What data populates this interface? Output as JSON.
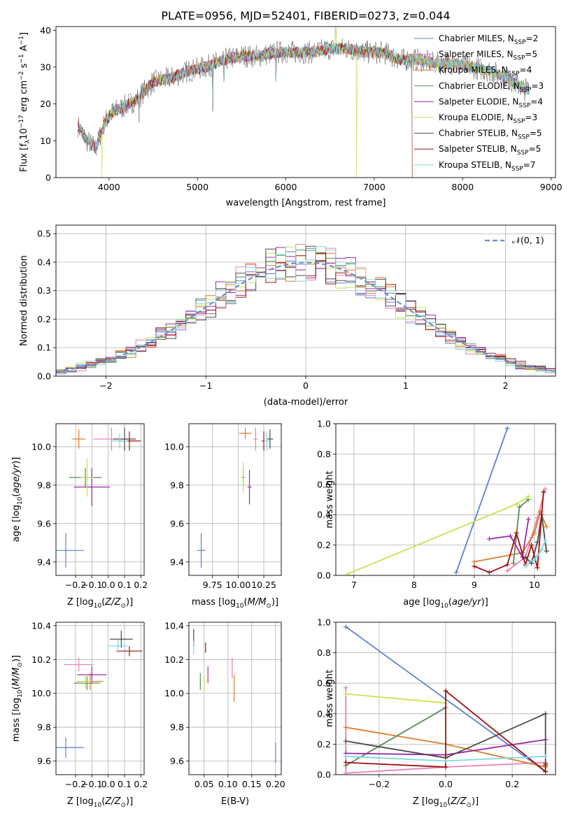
{
  "figure_title": "PLATE=0956, MJD=52401, FIBERID=0273, z=0.044",
  "colors": {
    "chabrier_miles": "#5b7fd6",
    "salpeter_miles": "#e87fb8",
    "kroupa_miles": "#e07b2a",
    "chabrier_elodie": "#5a8a5a",
    "salpeter_elodie": "#9a2aa8",
    "kroupa_elodie": "#c8e050",
    "chabrier_stelib": "#4a4a4a",
    "salpeter_stelib": "#a01010",
    "kroupa_stelib": "#80d8e0"
  },
  "chart_data": [
    {
      "id": "spectrum",
      "type": "line",
      "xlabel": "wavelength [Angstrom, rest frame]",
      "ylabel": "Flux [f",
      "xlim": [
        3400,
        9050
      ],
      "ylim": [
        0,
        41
      ],
      "xticks": [
        4000,
        5000,
        6000,
        7000,
        8000,
        9000
      ],
      "yticks": [
        0,
        10,
        20,
        30,
        40
      ],
      "legend_position": "top-right",
      "legend": [
        {
          "label": "Chabrier MILES, N",
          "n": "=2",
          "color": "chabrier_miles"
        },
        {
          "label": "Salpeter MILES, N",
          "n": "=5",
          "color": "salpeter_miles"
        },
        {
          "label": "Kroupa MILES, N",
          "n": "=4",
          "color": "kroupa_miles"
        },
        {
          "label": "Chabrier ELODIE, N",
          "n": "=3",
          "color": "chabrier_elodie"
        },
        {
          "label": "Salpeter ELODIE, N",
          "n": "=4",
          "color": "salpeter_elodie"
        },
        {
          "label": "Kroupa ELODIE, N",
          "n": "=3",
          "color": "kroupa_elodie"
        },
        {
          "label": "Chabrier STELIB, N",
          "n": "=5",
          "color": "chabrier_stelib"
        },
        {
          "label": "Salpeter STELIB, N",
          "n": "=5",
          "color": "salpeter_stelib"
        },
        {
          "label": "Kroupa STELIB, N",
          "n": "=7",
          "color": "kroupa_stelib"
        }
      ],
      "continuum": [
        [
          3650,
          14
        ],
        [
          3750,
          10
        ],
        [
          3850,
          8
        ],
        [
          3950,
          15
        ],
        [
          4050,
          18
        ],
        [
          4150,
          19
        ],
        [
          4300,
          21
        ],
        [
          4500,
          26
        ],
        [
          4700,
          27
        ],
        [
          4900,
          29
        ],
        [
          5100,
          30
        ],
        [
          5300,
          32
        ],
        [
          5500,
          33
        ],
        [
          5700,
          33
        ],
        [
          5900,
          34
        ],
        [
          6100,
          34
        ],
        [
          6300,
          34
        ],
        [
          6500,
          35
        ],
        [
          6700,
          35
        ],
        [
          6900,
          34
        ],
        [
          7100,
          34
        ],
        [
          7300,
          32
        ],
        [
          7500,
          32
        ],
        [
          7700,
          31
        ],
        [
          7900,
          31
        ],
        [
          8100,
          30
        ],
        [
          8300,
          29
        ],
        [
          8500,
          27
        ],
        [
          8700,
          24
        ]
      ],
      "spikes": [
        [
          3920,
          0
        ],
        [
          4340,
          15
        ],
        [
          5175,
          18
        ],
        [
          5300,
          26
        ],
        [
          5890,
          26
        ],
        [
          6563,
          42
        ],
        [
          6800,
          0
        ],
        [
          7425,
          0
        ]
      ]
    },
    {
      "id": "residuals",
      "type": "bar",
      "xlabel": "(data-model)/error",
      "ylabel": "Normed distribution",
      "xlim": [
        -2.5,
        2.5
      ],
      "ylim": [
        0,
        0.53
      ],
      "xticks": [
        -2,
        -1,
        0,
        1,
        2
      ],
      "yticks": [
        0.0,
        0.1,
        0.2,
        0.3,
        0.4,
        0.5
      ],
      "bin_width": 0.1,
      "bin_start": -2.5,
      "normal_label": "𝒩(0, 1)",
      "legend_position": "top-right",
      "series_colors": [
        "chabrier_miles",
        "salpeter_miles",
        "kroupa_miles",
        "chabrier_elodie",
        "salpeter_elodie",
        "kroupa_elodie",
        "chabrier_stelib",
        "salpeter_stelib",
        "kroupa_stelib"
      ]
    },
    {
      "id": "age_vs_z",
      "type": "scatter",
      "xlabel": "Z [log",
      "ylabel": "age  [log",
      "xlim": [
        -0.32,
        0.22
      ],
      "ylim": [
        9.33,
        10.12
      ],
      "xticks": [
        -0.2,
        -0.1,
        0.0,
        0.1,
        0.2
      ],
      "yticks": [
        9.4,
        9.6,
        9.8,
        10.0
      ],
      "points": [
        {
          "x": -0.26,
          "y": 9.46,
          "xerr": 0.11,
          "yerr": 0.09,
          "color": "chabrier_miles"
        },
        {
          "x": 0.02,
          "y": 10.04,
          "xerr": 0.11,
          "yerr": 0.06,
          "color": "salpeter_miles"
        },
        {
          "x": -0.18,
          "y": 10.04,
          "xerr": 0.04,
          "yerr": 0.05,
          "color": "kroupa_miles"
        },
        {
          "x": -0.14,
          "y": 9.84,
          "xerr": 0.1,
          "yerr": 0.05,
          "color": "chabrier_elodie"
        },
        {
          "x": -0.1,
          "y": 9.79,
          "xerr": 0.11,
          "yerr": 0.1,
          "color": "salpeter_elodie"
        },
        {
          "x": -0.13,
          "y": 9.84,
          "xerr": 0.04,
          "yerr": 0.1,
          "color": "kroupa_elodie"
        },
        {
          "x": 0.1,
          "y": 10.04,
          "xerr": 0.07,
          "yerr": 0.06,
          "color": "chabrier_stelib"
        },
        {
          "x": 0.13,
          "y": 10.03,
          "xerr": 0.07,
          "yerr": 0.05,
          "color": "salpeter_stelib"
        },
        {
          "x": 0.07,
          "y": 10.03,
          "xerr": 0.05,
          "yerr": 0.04,
          "color": "kroupa_stelib"
        }
      ]
    },
    {
      "id": "age_vs_mass",
      "type": "scatter",
      "xlabel": "mass [log",
      "xlim": [
        9.52,
        10.42
      ],
      "ylim": [
        9.33,
        10.12
      ],
      "xticks": [
        9.75,
        10.0,
        10.25
      ],
      "xticklabels": [
        "9.75",
        "10.00",
        "10.25"
      ],
      "yticks": [
        9.4,
        9.6,
        9.8,
        10.0
      ],
      "points": [
        {
          "x": 9.64,
          "y": 9.46,
          "xerr": 0.04,
          "yerr": 0.09,
          "color": "chabrier_miles"
        },
        {
          "x": 10.17,
          "y": 10.04,
          "xerr": 0.02,
          "yerr": 0.06,
          "color": "salpeter_miles"
        },
        {
          "x": 10.07,
          "y": 10.07,
          "xerr": 0.06,
          "yerr": 0.03,
          "color": "kroupa_miles"
        },
        {
          "x": 10.05,
          "y": 9.84,
          "xerr": 0.02,
          "yerr": 0.04,
          "color": "chabrier_elodie"
        },
        {
          "x": 10.11,
          "y": 9.79,
          "xerr": 0.02,
          "yerr": 0.09,
          "color": "salpeter_elodie"
        },
        {
          "x": 10.05,
          "y": 9.84,
          "xerr": 0.01,
          "yerr": 0.08,
          "color": "kroupa_elodie"
        },
        {
          "x": 10.31,
          "y": 10.04,
          "xerr": 0.03,
          "yerr": 0.05,
          "color": "chabrier_stelib"
        },
        {
          "x": 10.25,
          "y": 10.03,
          "xerr": 0.02,
          "yerr": 0.05,
          "color": "salpeter_stelib"
        },
        {
          "x": 10.28,
          "y": 10.03,
          "xerr": 0.03,
          "yerr": 0.05,
          "color": "kroupa_stelib"
        }
      ]
    },
    {
      "id": "weight_vs_age",
      "type": "line",
      "xlabel": "age  [log",
      "ylabel": "mass weight",
      "xlim": [
        6.7,
        10.35
      ],
      "ylim": [
        0,
        1.0
      ],
      "xticks": [
        7,
        8,
        9,
        10
      ],
      "yticks": [
        0.0,
        0.2,
        0.4,
        0.6,
        0.8,
        1.0
      ],
      "series": [
        {
          "color": "chabrier_miles",
          "x": [
            8.7,
            9.55
          ],
          "y": [
            0.02,
            0.97
          ]
        },
        {
          "color": "salpeter_miles",
          "x": [
            9.55,
            9.85,
            9.95,
            10.05,
            10.18
          ],
          "y": [
            0.03,
            0.12,
            0.25,
            0.38,
            0.57
          ]
        },
        {
          "color": "kroupa_miles",
          "x": [
            9.0,
            9.8,
            10.0,
            10.1,
            10.2
          ],
          "y": [
            0.09,
            0.15,
            0.28,
            0.42,
            0.32
          ]
        },
        {
          "color": "chabrier_elodie",
          "x": [
            9.65,
            9.75,
            9.9
          ],
          "y": [
            0.08,
            0.45,
            0.5
          ]
        },
        {
          "color": "salpeter_elodie",
          "x": [
            9.25,
            9.6,
            9.8,
            9.9
          ],
          "y": [
            0.24,
            0.26,
            0.12,
            0.37
          ]
        },
        {
          "color": "kroupa_elodie",
          "x": [
            6.9,
            9.7,
            9.9
          ],
          "y": [
            0.01,
            0.47,
            0.52
          ]
        },
        {
          "color": "chabrier_stelib",
          "x": [
            9.85,
            9.95,
            10.05,
            10.12,
            10.2
          ],
          "y": [
            0.12,
            0.08,
            0.22,
            0.4,
            0.16
          ]
        },
        {
          "color": "salpeter_stelib",
          "x": [
            9.0,
            9.25,
            9.55,
            9.7,
            9.85,
            9.95,
            10.05,
            10.15
          ],
          "y": [
            0.06,
            0.02,
            0.07,
            0.28,
            0.07,
            0.2,
            0.05,
            0.55
          ]
        },
        {
          "color": "kroupa_stelib",
          "x": [
            9.85,
            9.95,
            10.0,
            10.05,
            10.12,
            10.18
          ],
          "y": [
            0.06,
            0.1,
            0.1,
            0.13,
            0.17,
            0.23
          ]
        }
      ]
    },
    {
      "id": "mass_vs_z",
      "type": "scatter",
      "xlabel": "Z [log",
      "ylabel": "mass [log",
      "xlim": [
        -0.32,
        0.22
      ],
      "ylim": [
        9.52,
        10.42
      ],
      "xticks": [
        -0.2,
        -0.1,
        0.0,
        0.1,
        0.2
      ],
      "yticks": [
        9.6,
        9.8,
        10.0,
        10.2,
        10.4
      ],
      "points": [
        {
          "x": -0.26,
          "y": 9.68,
          "xerr": 0.11,
          "yerr": 0.06,
          "color": "chabrier_miles"
        },
        {
          "x": -0.18,
          "y": 10.17,
          "xerr": 0.09,
          "yerr": 0.04,
          "color": "salpeter_miles"
        },
        {
          "x": -0.11,
          "y": 10.07,
          "xerr": 0.08,
          "yerr": 0.05,
          "color": "kroupa_miles"
        },
        {
          "x": -0.13,
          "y": 10.06,
          "xerr": 0.08,
          "yerr": 0.04,
          "color": "chabrier_elodie"
        },
        {
          "x": -0.1,
          "y": 10.11,
          "xerr": 0.09,
          "yerr": 0.05,
          "color": "salpeter_elodie"
        },
        {
          "x": -0.14,
          "y": 10.07,
          "xerr": 0.04,
          "yerr": 0.04,
          "color": "kroupa_elodie"
        },
        {
          "x": 0.08,
          "y": 10.32,
          "xerr": 0.07,
          "yerr": 0.05,
          "color": "chabrier_stelib"
        },
        {
          "x": 0.13,
          "y": 10.25,
          "xerr": 0.08,
          "yerr": 0.03,
          "color": "salpeter_stelib"
        },
        {
          "x": 0.06,
          "y": 10.28,
          "xerr": 0.06,
          "yerr": 0.04,
          "color": "kroupa_stelib"
        }
      ]
    },
    {
      "id": "mass_vs_ebv",
      "type": "scatter",
      "xlabel": "E(B-V)",
      "xlim": [
        0.018,
        0.212
      ],
      "ylim": [
        9.52,
        10.42
      ],
      "xticks": [
        0.05,
        0.1,
        0.15,
        0.2
      ],
      "xticklabels": [
        "0.05",
        "0.10",
        "0.15",
        "0.20"
      ],
      "yticks": [
        9.6,
        9.8,
        10.0,
        10.2,
        10.4
      ],
      "points": [
        {
          "x": 0.2,
          "y": 9.65,
          "xerr": 0,
          "yerr": 0.06,
          "color": "chabrier_miles"
        },
        {
          "x": 0.109,
          "y": 10.15,
          "xerr": 0,
          "yerr": 0.06,
          "color": "salpeter_miles"
        },
        {
          "x": 0.113,
          "y": 10.03,
          "xerr": 0,
          "yerr": 0.08,
          "color": "kroupa_miles"
        },
        {
          "x": 0.042,
          "y": 10.07,
          "xerr": 0,
          "yerr": 0.05,
          "color": "chabrier_elodie"
        },
        {
          "x": 0.058,
          "y": 10.11,
          "xerr": 0,
          "yerr": 0.05,
          "color": "salpeter_elodie"
        },
        {
          "x": 0.05,
          "y": 10.06,
          "xerr": 0,
          "yerr": 0.05,
          "color": "kroupa_elodie"
        },
        {
          "x": 0.028,
          "y": 10.33,
          "xerr": 0,
          "yerr": 0.05,
          "color": "chabrier_stelib"
        },
        {
          "x": 0.053,
          "y": 10.27,
          "xerr": 0,
          "yerr": 0.03,
          "color": "salpeter_stelib"
        },
        {
          "x": 0.028,
          "y": 10.27,
          "xerr": 0,
          "yerr": 0.04,
          "color": "kroupa_stelib"
        }
      ]
    },
    {
      "id": "weight_vs_z",
      "type": "line",
      "xlabel": "Z [log",
      "ylabel": "mass weight",
      "xlim": [
        -0.33,
        0.33
      ],
      "ylim": [
        0,
        1.0
      ],
      "xticks": [
        -0.2,
        0.0,
        0.2
      ],
      "yticks": [
        0.0,
        0.2,
        0.4,
        0.6,
        0.8,
        1.0
      ],
      "series": [
        {
          "color": "chabrier_miles",
          "x": [
            -0.3,
            0.3
          ],
          "y": [
            0.97,
            0.02
          ]
        },
        {
          "color": "salpeter_miles",
          "x": [
            -0.3,
            -0.3,
            0.0,
            0.3
          ],
          "y": [
            0.57,
            0.01,
            0.05,
            0.08
          ]
        },
        {
          "color": "kroupa_miles",
          "x": [
            -0.3,
            0.0,
            0.3
          ],
          "y": [
            0.31,
            0.2,
            0.05
          ]
        },
        {
          "color": "chabrier_elodie",
          "x": [
            -0.3,
            0.0
          ],
          "y": [
            0.06,
            0.44
          ]
        },
        {
          "color": "salpeter_elodie",
          "x": [
            -0.3,
            0.0,
            0.3
          ],
          "y": [
            0.14,
            0.13,
            0.23
          ]
        },
        {
          "color": "kroupa_elodie",
          "x": [
            -0.3,
            0.0
          ],
          "y": [
            0.53,
            0.47
          ]
        },
        {
          "color": "chabrier_stelib",
          "x": [
            -0.3,
            0.0,
            0.3,
            0.3
          ],
          "y": [
            0.22,
            0.11,
            0.4,
            0.06
          ]
        },
        {
          "color": "salpeter_stelib",
          "x": [
            -0.3,
            0.0,
            0.0,
            0.3,
            0.3
          ],
          "y": [
            0.08,
            0.05,
            0.55,
            0.02,
            0.07
          ]
        },
        {
          "color": "kroupa_stelib",
          "x": [
            -0.3,
            0.0,
            0.3
          ],
          "y": [
            0.12,
            0.09,
            0.12
          ]
        }
      ]
    }
  ]
}
